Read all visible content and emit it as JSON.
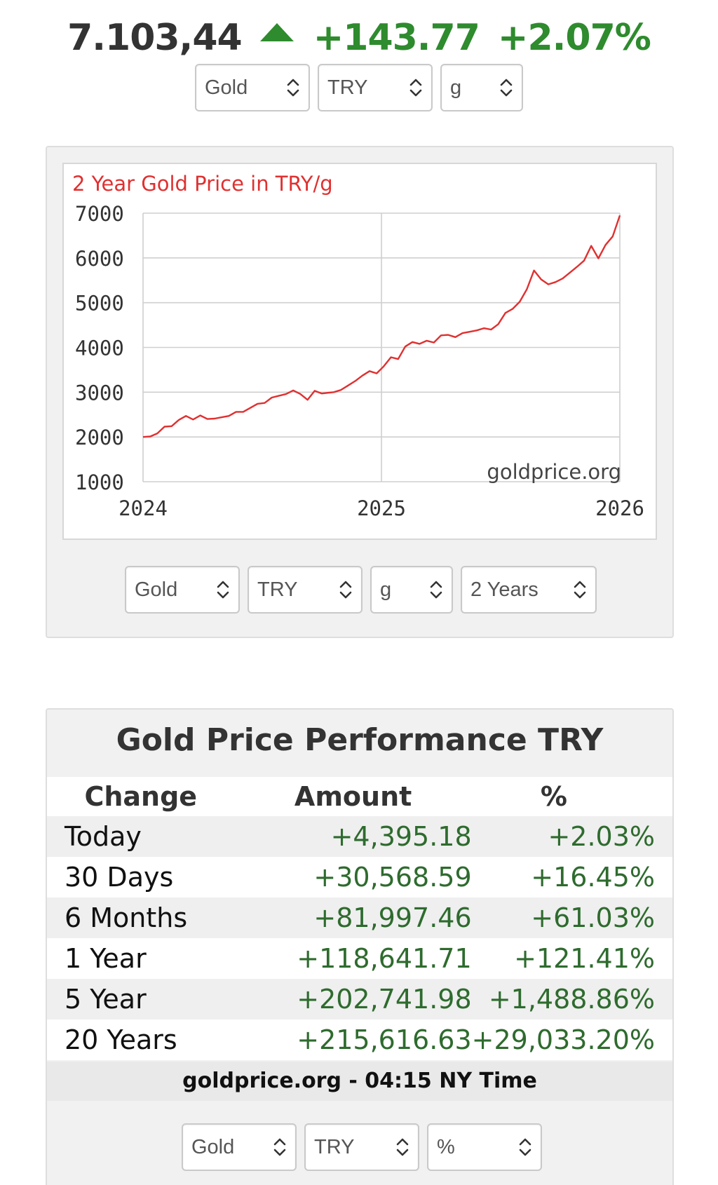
{
  "header": {
    "price": "7.103,44",
    "change": "+143.77",
    "change_pct": "+2.07%",
    "accent_color": "#2e8b2e",
    "trend_icon": "up-triangle-icon"
  },
  "top_selects": [
    {
      "value": "Gold"
    },
    {
      "value": "TRY"
    },
    {
      "value": "g"
    }
  ],
  "chart_data": {
    "type": "line",
    "title": "2 Year Gold Price in TRY/g",
    "watermark": "goldprice.org",
    "xlabel": "",
    "ylabel": "",
    "x_ticks": [
      "2024",
      "2025",
      "2026"
    ],
    "y_ticks": [
      1000,
      2000,
      3000,
      4000,
      5000,
      6000,
      7000
    ],
    "xlim": [
      2024.0,
      2026.0
    ],
    "ylim": [
      1000,
      7000
    ],
    "grid": true,
    "line_color": "#e03030",
    "series": [
      {
        "x": [
          2024.0,
          2024.03,
          2024.06,
          2024.09,
          2024.12,
          2024.15,
          2024.18,
          2024.21,
          2024.24,
          2024.27,
          2024.3,
          2024.33,
          2024.36,
          2024.39,
          2024.42,
          2024.45,
          2024.48,
          2024.51,
          2024.54,
          2024.57,
          2024.6,
          2024.63,
          2024.66,
          2024.69,
          2024.72,
          2024.75,
          2024.78,
          2024.8,
          2024.83,
          2024.86,
          2024.89,
          2024.92,
          2024.95,
          2024.98,
          2025.01,
          2025.04,
          2025.07,
          2025.1,
          2025.13,
          2025.16,
          2025.19,
          2025.22,
          2025.25,
          2025.28,
          2025.31,
          2025.34,
          2025.37,
          2025.4,
          2025.43,
          2025.46,
          2025.49,
          2025.52,
          2025.55,
          2025.58,
          2025.61,
          2025.64,
          2025.67,
          2025.7,
          2025.73,
          2025.76,
          2025.79,
          2025.82,
          2025.85,
          2025.88,
          2025.91,
          2025.94,
          2025.97,
          2026.0
        ],
        "y": [
          2000,
          2010,
          2080,
          2230,
          2240,
          2380,
          2470,
          2390,
          2480,
          2400,
          2410,
          2440,
          2470,
          2560,
          2560,
          2650,
          2740,
          2760,
          2880,
          2920,
          2960,
          3040,
          2960,
          2830,
          3030,
          2970,
          2990,
          3000,
          3050,
          3150,
          3250,
          3370,
          3470,
          3420,
          3580,
          3780,
          3740,
          4020,
          4120,
          4080,
          4150,
          4110,
          4270,
          4280,
          4230,
          4320,
          4350,
          4380,
          4430,
          4400,
          4520,
          4770,
          4860,
          5020,
          5300,
          5720,
          5520,
          5410,
          5460,
          5540,
          5670,
          5800,
          5940,
          6270,
          5990,
          6290,
          6480,
          6950
        ]
      }
    ]
  },
  "chart_selects": [
    {
      "value": "Gold"
    },
    {
      "value": "TRY"
    },
    {
      "value": "g"
    },
    {
      "value": "2 Years"
    }
  ],
  "performance": {
    "title": "Gold Price Performance TRY",
    "headers": {
      "change": "Change",
      "amount": "Amount",
      "pct": "%"
    },
    "rows": [
      {
        "label": "Today",
        "amount": "+4,395.18",
        "pct": "+2.03%"
      },
      {
        "label": "30 Days",
        "amount": "+30,568.59",
        "pct": "+16.45%"
      },
      {
        "label": "6 Months",
        "amount": "+81,997.46",
        "pct": "+61.03%"
      },
      {
        "label": "1 Year",
        "amount": "+118,641.71",
        "pct": "+121.41%"
      },
      {
        "label": "5 Year",
        "amount": "+202,741.98",
        "pct": "+1,488.86%"
      },
      {
        "label": "20 Years",
        "amount": "+215,616.63",
        "pct": "+29,033.20%"
      }
    ],
    "footer": "goldprice.org - 04:15 NY Time"
  },
  "bottom_selects": [
    {
      "value": "Gold"
    },
    {
      "value": "TRY"
    },
    {
      "value": "%"
    }
  ]
}
